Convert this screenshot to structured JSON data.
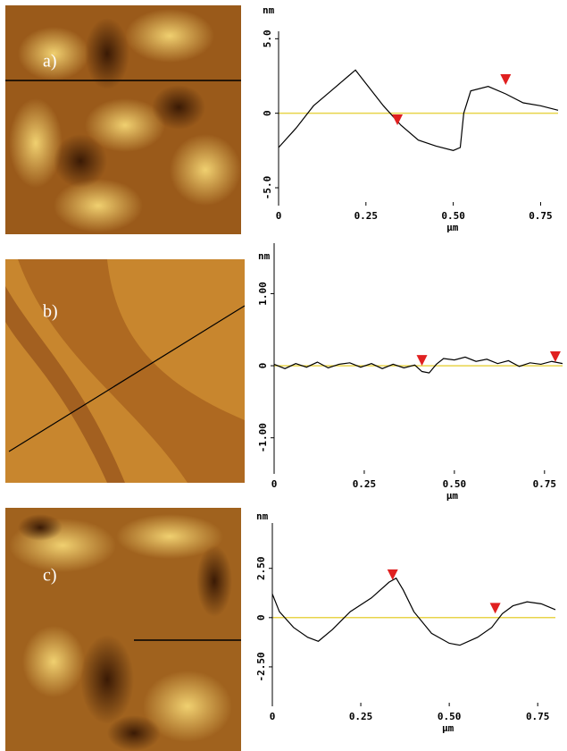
{
  "chart_data": [
    {
      "type": "line",
      "panel_label": "a)",
      "y_label": "nm",
      "x_label": "μm",
      "color": "#000000",
      "zero_color": "#e8d44a",
      "x": [
        0,
        0.05,
        0.1,
        0.15,
        0.2,
        0.22,
        0.25,
        0.3,
        0.35,
        0.4,
        0.45,
        0.5,
        0.52,
        0.53,
        0.55,
        0.6,
        0.65,
        0.7,
        0.75,
        0.8
      ],
      "values": [
        -2.3,
        -1.0,
        0.5,
        1.5,
        2.5,
        2.9,
        2.0,
        0.5,
        -0.8,
        -1.8,
        -2.2,
        -2.5,
        -2.3,
        0,
        1.5,
        1.8,
        1.3,
        0.7,
        0.5,
        0.2
      ],
      "markers": {
        "color": "#e02020",
        "x": [
          0.34,
          0.65
        ],
        "y": [
          -0.8,
          1.9
        ]
      },
      "xlim": [
        0,
        0.8
      ],
      "ylim": [
        -6.2,
        5.5
      ],
      "xticks": [
        0,
        0.25,
        {
          "value": 0.5,
          "label": "0.50"
        },
        0.75
      ],
      "yticks": [
        {
          "value": 5,
          "label": "5.0"
        },
        0,
        {
          "value": -5,
          "label": "-5.0"
        }
      ]
    },
    {
      "type": "line",
      "panel_label": "b)",
      "y_label": "nm",
      "x_label": "μm",
      "color": "#000000",
      "zero_color": "#e8d44a",
      "x": [
        0,
        0.03,
        0.06,
        0.09,
        0.12,
        0.15,
        0.18,
        0.21,
        0.24,
        0.27,
        0.3,
        0.33,
        0.36,
        0.39,
        0.41,
        0.43,
        0.45,
        0.47,
        0.5,
        0.53,
        0.56,
        0.59,
        0.62,
        0.65,
        0.68,
        0.71,
        0.74,
        0.77,
        0.8
      ],
      "values": [
        0.02,
        -0.04,
        0.03,
        -0.02,
        0.05,
        -0.03,
        0.02,
        0.04,
        -0.02,
        0.03,
        -0.04,
        0.02,
        -0.03,
        0.01,
        -0.08,
        -0.1,
        0.02,
        0.1,
        0.08,
        0.12,
        0.06,
        0.09,
        0.03,
        0.07,
        -0.01,
        0.04,
        0.02,
        0.06,
        0.03
      ],
      "markers": {
        "color": "#e02020",
        "x": [
          0.41,
          0.78
        ],
        "y": [
          0.0,
          0.05
        ]
      },
      "xlim": [
        0,
        0.8
      ],
      "ylim": [
        -1.5,
        1.7
      ],
      "xticks": [
        0,
        0.25,
        {
          "value": 0.5,
          "label": "0.50"
        },
        0.75
      ],
      "yticks": [
        {
          "value": 1,
          "label": "1.00"
        },
        0,
        {
          "value": -1,
          "label": "-1.00"
        }
      ]
    },
    {
      "type": "line",
      "panel_label": "c)",
      "y_label": "nm",
      "x_label": "μm",
      "color": "#000000",
      "zero_color": "#e8d44a",
      "x": [
        0,
        0.02,
        0.06,
        0.1,
        0.13,
        0.17,
        0.22,
        0.28,
        0.33,
        0.35,
        0.37,
        0.4,
        0.45,
        0.5,
        0.53,
        0.58,
        0.62,
        0.65,
        0.68,
        0.72,
        0.76,
        0.8
      ],
      "values": [
        1.2,
        0.3,
        -0.5,
        -1.0,
        -1.2,
        -0.6,
        0.3,
        1.0,
        1.8,
        2.0,
        1.4,
        0.3,
        -0.8,
        -1.3,
        -1.4,
        -1.0,
        -0.5,
        0.2,
        0.6,
        0.8,
        0.7,
        0.4
      ],
      "markers": {
        "color": "#e02020",
        "x": [
          0.34,
          0.63
        ],
        "y": [
          1.9,
          0.2
        ]
      },
      "xlim": [
        0,
        0.8
      ],
      "ylim": [
        -4.5,
        4.8
      ],
      "xticks": [
        0,
        0.25,
        {
          "value": 0.5,
          "label": "0.50"
        },
        0.75
      ],
      "yticks": [
        {
          "value": 2.5,
          "label": "2.50"
        },
        0,
        {
          "value": -2.5,
          "label": "-2.50"
        }
      ]
    }
  ]
}
